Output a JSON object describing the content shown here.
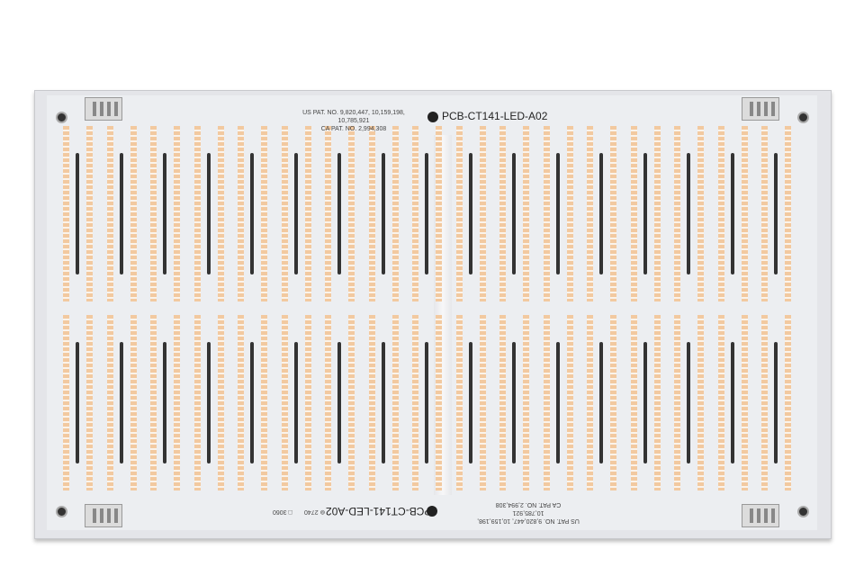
{
  "board": {
    "part_number": "PCB-CT141-LED-A02",
    "patent_us": "US PAT. NO. 9,820,447, 10,159,198, 10,785,921",
    "patent_ca": "CA PAT. NO. 2,994,308",
    "code_1": "⊚ 2740",
    "code_2": "□ 3060",
    "led_color": "#f2c9a0",
    "pcb_color": "#eceef1"
  }
}
